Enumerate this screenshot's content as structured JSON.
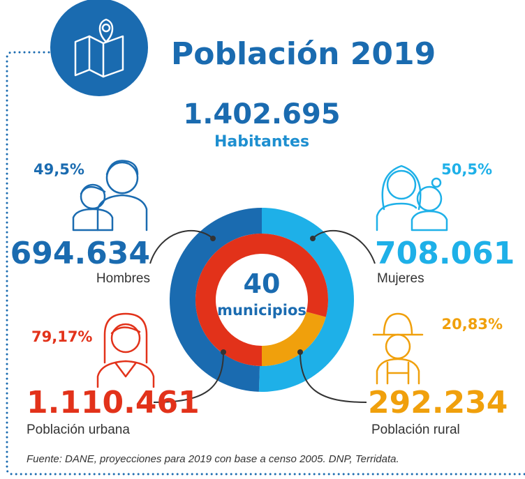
{
  "title": "Población 2019",
  "total": {
    "value": "1.402.695",
    "label": "Habitantes"
  },
  "center": {
    "value": "40",
    "label": "municipios"
  },
  "groups": [
    {
      "percent": 49.5,
      "percent_label": "49,5%",
      "count": "694.634",
      "label": "Hombres",
      "color": "#1a6bb0"
    },
    {
      "percent": 50.5,
      "percent_label": "50,5%",
      "count": "708.061",
      "label": "Mujeres",
      "color": "#1eb0e8"
    },
    {
      "percent": 79.17,
      "percent_label": "79,17%",
      "count": "1.110.461",
      "label": "Población urbana",
      "color": "#e2321a"
    },
    {
      "percent": 20.83,
      "percent_label": "20,83%",
      "count": "292.234",
      "label": "Población rural",
      "color": "#f0a00c"
    }
  ],
  "footnote": "Fuente: DANE, proyecciones para 2019 con base a censo 2005. DNP, Terridata."
}
